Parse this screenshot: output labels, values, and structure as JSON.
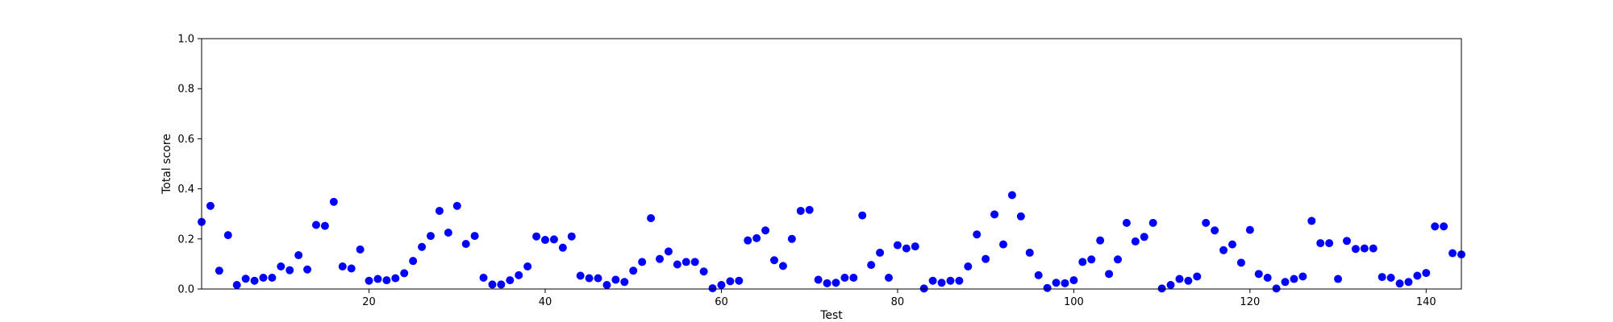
{
  "chart_data": {
    "type": "scatter",
    "title": "",
    "xlabel": "Test",
    "ylabel": "Total score",
    "xlim": [
      1,
      144
    ],
    "ylim": [
      0,
      1.0
    ],
    "grid": false,
    "marker_color": "#0000ff",
    "x_ticks": [
      20,
      40,
      60,
      80,
      100,
      120,
      140
    ],
    "x_tick_labels": [
      "20",
      "40",
      "60",
      "80",
      "100",
      "120",
      "140"
    ],
    "y_ticks": [
      0.0,
      0.2,
      0.4,
      0.6,
      0.8,
      1.0
    ],
    "y_tick_labels": [
      "0.0",
      "0.2",
      "0.4",
      "0.6",
      "0.8",
      "1.0"
    ],
    "series": [
      {
        "x": [
          1,
          2,
          3,
          4,
          5,
          6,
          7,
          8,
          9,
          10,
          11,
          12,
          13,
          14,
          15,
          16,
          17,
          18,
          19,
          20,
          21,
          22,
          23,
          24,
          25,
          26,
          27,
          28,
          29,
          30,
          31,
          32,
          33,
          34,
          35,
          36,
          37,
          38,
          39,
          40,
          41,
          42,
          43,
          44,
          45,
          46,
          47,
          48,
          49,
          50,
          51,
          52,
          53,
          54,
          55,
          56,
          57,
          58,
          59,
          60,
          61,
          62,
          63,
          64,
          65,
          66,
          67,
          68,
          69,
          70,
          71,
          72,
          73,
          74,
          75,
          76,
          77,
          78,
          79,
          80,
          81,
          82,
          83,
          84,
          85,
          86,
          87,
          88,
          89,
          90,
          91,
          92,
          93,
          94,
          95,
          96,
          97,
          98,
          99,
          100,
          101,
          102,
          103,
          104,
          105,
          106,
          107,
          108,
          109,
          110,
          111,
          112,
          113,
          114,
          115,
          116,
          117,
          118,
          119,
          120,
          121,
          122,
          123,
          124,
          125,
          126,
          127,
          128,
          129,
          130,
          131,
          132,
          133,
          134,
          135,
          136,
          137,
          138,
          139,
          140,
          141,
          142,
          143,
          144
        ],
        "y": [
          0.268,
          0.332,
          0.073,
          0.215,
          0.016,
          0.041,
          0.033,
          0.045,
          0.045,
          0.09,
          0.075,
          0.135,
          0.078,
          0.256,
          0.252,
          0.348,
          0.09,
          0.082,
          0.158,
          0.033,
          0.04,
          0.035,
          0.043,
          0.063,
          0.112,
          0.168,
          0.212,
          0.312,
          0.225,
          0.332,
          0.18,
          0.212,
          0.045,
          0.018,
          0.018,
          0.035,
          0.055,
          0.09,
          0.21,
          0.196,
          0.198,
          0.165,
          0.21,
          0.053,
          0.043,
          0.043,
          0.016,
          0.037,
          0.028,
          0.073,
          0.108,
          0.283,
          0.12,
          0.15,
          0.098,
          0.108,
          0.108,
          0.07,
          0.003,
          0.016,
          0.031,
          0.033,
          0.194,
          0.203,
          0.234,
          0.115,
          0.092,
          0.2,
          0.312,
          0.316,
          0.037,
          0.023,
          0.025,
          0.045,
          0.045,
          0.294,
          0.096,
          0.145,
          0.045,
          0.175,
          0.162,
          0.17,
          0.002,
          0.033,
          0.025,
          0.033,
          0.033,
          0.09,
          0.218,
          0.12,
          0.298,
          0.178,
          0.375,
          0.29,
          0.145,
          0.055,
          0.004,
          0.025,
          0.023,
          0.035,
          0.108,
          0.118,
          0.194,
          0.06,
          0.118,
          0.264,
          0.19,
          0.208,
          0.264,
          0.002,
          0.016,
          0.04,
          0.033,
          0.05,
          0.264,
          0.234,
          0.155,
          0.178,
          0.105,
          0.236,
          0.06,
          0.045,
          0.002,
          0.028,
          0.04,
          0.05,
          0.272,
          0.183,
          0.183,
          0.04,
          0.192,
          0.16,
          0.162,
          0.162,
          0.048,
          0.045,
          0.022,
          0.028,
          0.053,
          0.064,
          0.25,
          0.25,
          0.143,
          0.138
        ]
      }
    ]
  }
}
